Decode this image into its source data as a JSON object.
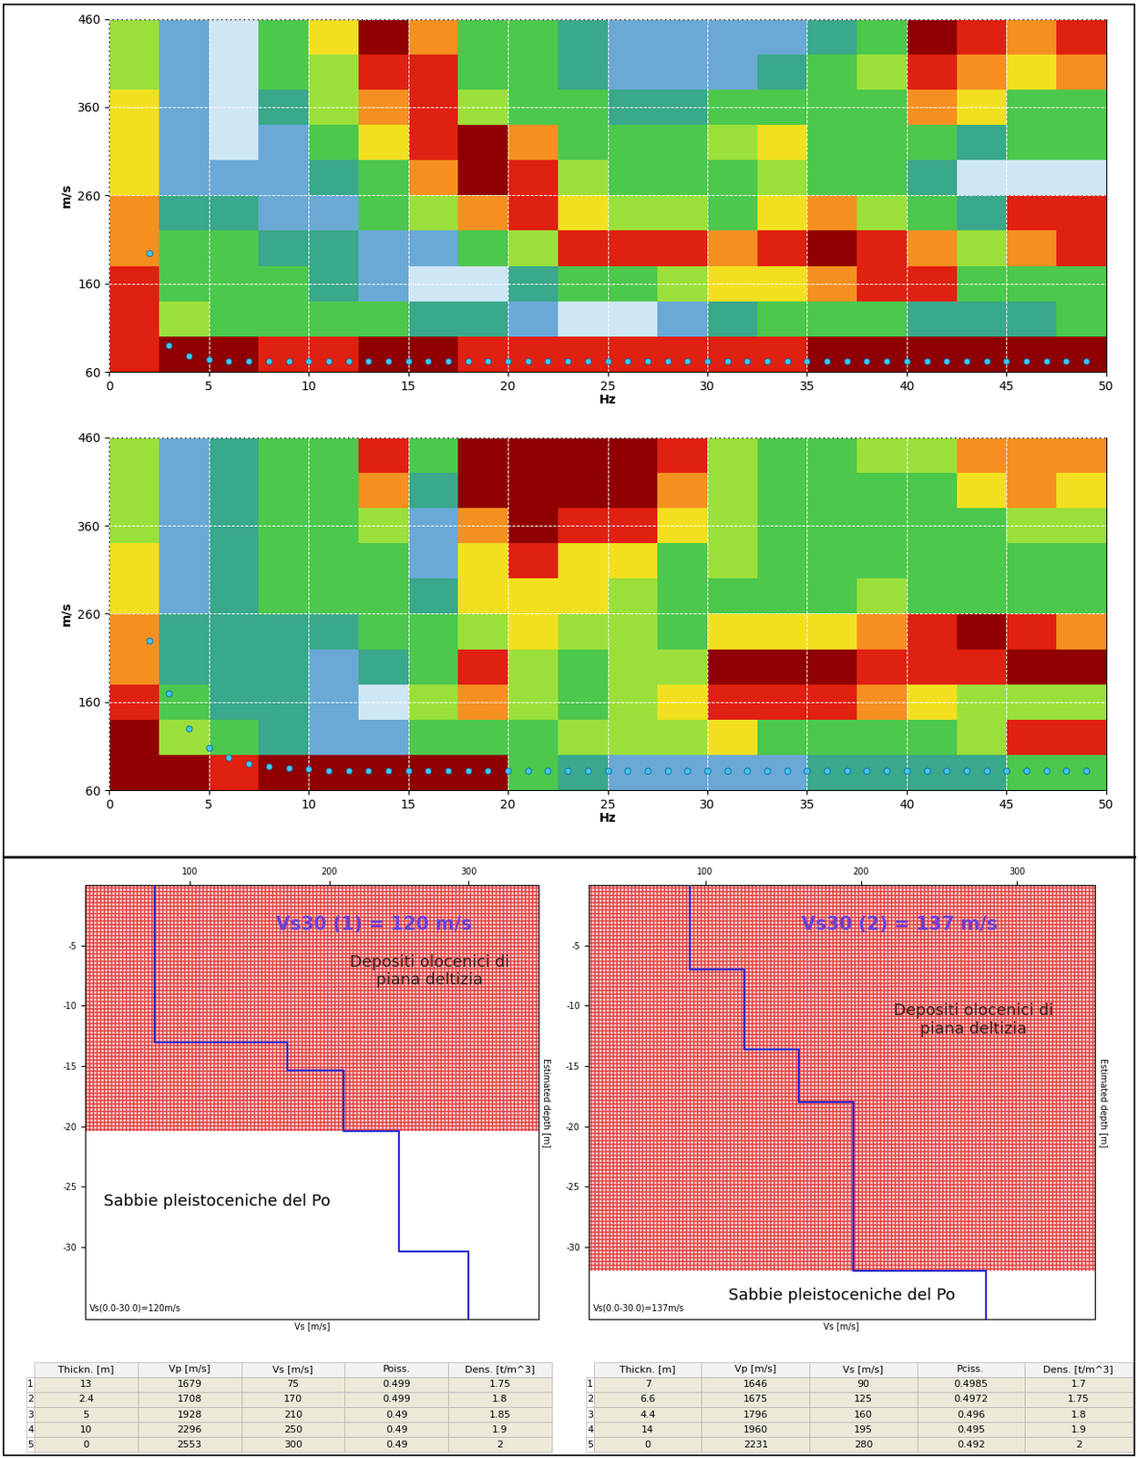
{
  "chart_data": [
    {
      "type": "heatmap",
      "x_label": "Hz",
      "y_label": "m/s",
      "xlim": [
        0,
        50
      ],
      "xticks": [
        0,
        5,
        10,
        15,
        20,
        25,
        30,
        35,
        40,
        45,
        50
      ],
      "ylim": [
        60,
        460
      ],
      "yticks": [
        60,
        160,
        260,
        360,
        460
      ],
      "grid": true,
      "x_edges": [
        0,
        2.5,
        5,
        7.5,
        10,
        12.5,
        15,
        17.5,
        20,
        22.5,
        25,
        27.5,
        30,
        32.5,
        35,
        37.5,
        40,
        42.5,
        45,
        47.5,
        50
      ],
      "y_edges": [
        60,
        100,
        140,
        180,
        220,
        260,
        300,
        340,
        380,
        420,
        460
      ],
      "color_range": [
        0,
        9
      ],
      "cells": [
        [
          8,
          9,
          9,
          8,
          8,
          9,
          9,
          8,
          8,
          8,
          8,
          8,
          8,
          8,
          9,
          9,
          9,
          9,
          9,
          9
        ],
        [
          8,
          5,
          4,
          4,
          4,
          4,
          3,
          3,
          2,
          1,
          1,
          2,
          3,
          4,
          4,
          4,
          3,
          3,
          3,
          4
        ],
        [
          8,
          4,
          4,
          4,
          3,
          2,
          1,
          1,
          3,
          4,
          4,
          5,
          6,
          6,
          7,
          8,
          8,
          4,
          4,
          4
        ],
        [
          7,
          4,
          4,
          3,
          3,
          2,
          2,
          4,
          5,
          8,
          8,
          8,
          7,
          8,
          9,
          8,
          7,
          5,
          7,
          8
        ],
        [
          7,
          3,
          3,
          2,
          2,
          4,
          5,
          7,
          8,
          6,
          5,
          5,
          4,
          6,
          7,
          5,
          4,
          3,
          8,
          8
        ],
        [
          6,
          2,
          2,
          2,
          3,
          4,
          7,
          9,
          8,
          5,
          4,
          4,
          4,
          5,
          4,
          4,
          3,
          1,
          1,
          1
        ],
        [
          6,
          2,
          1,
          2,
          4,
          6,
          8,
          9,
          7,
          4,
          4,
          4,
          5,
          6,
          4,
          4,
          4,
          3,
          4,
          4
        ],
        [
          6,
          2,
          1,
          3,
          5,
          7,
          8,
          5,
          4,
          4,
          3,
          3,
          4,
          4,
          4,
          4,
          7,
          6,
          4,
          4
        ],
        [
          5,
          2,
          1,
          4,
          5,
          8,
          8,
          4,
          4,
          3,
          2,
          2,
          2,
          3,
          4,
          5,
          8,
          7,
          6,
          7
        ],
        [
          5,
          2,
          1,
          4,
          6,
          9,
          7,
          4,
          4,
          3,
          2,
          2,
          2,
          2,
          3,
          4,
          9,
          8,
          7,
          8
        ]
      ],
      "marker": "o",
      "color": "#40c8f0",
      "picks": {
        "x": [
          2,
          3,
          4,
          5,
          6,
          7,
          8,
          9,
          10,
          11,
          12,
          13,
          14,
          15,
          16,
          17,
          18,
          19,
          20,
          21,
          22,
          23,
          24,
          25,
          26,
          27,
          28,
          29,
          30,
          31,
          32,
          33,
          34,
          35,
          36,
          37,
          38,
          39,
          40,
          41,
          42,
          43,
          44,
          45,
          46,
          47,
          48,
          49
        ],
        "y": [
          195,
          90,
          78,
          74,
          72,
          72,
          72,
          72,
          72,
          72,
          72,
          72,
          72,
          72,
          72,
          72,
          72,
          72,
          72,
          72,
          72,
          72,
          72,
          72,
          72,
          72,
          72,
          72,
          72,
          72,
          72,
          72,
          72,
          72,
          72,
          72,
          72,
          72,
          72,
          72,
          72,
          72,
          72,
          72,
          72,
          72,
          72,
          72
        ]
      }
    },
    {
      "type": "heatmap",
      "x_label": "Hz",
      "y_label": "m/s",
      "xlim": [
        0,
        50
      ],
      "xticks": [
        0,
        5,
        10,
        15,
        20,
        25,
        30,
        35,
        40,
        45,
        50
      ],
      "ylim": [
        60,
        460
      ],
      "yticks": [
        60,
        160,
        260,
        360,
        460
      ],
      "grid": true,
      "x_edges": [
        0,
        2.5,
        5,
        7.5,
        10,
        12.5,
        15,
        17.5,
        20,
        22.5,
        25,
        27.5,
        30,
        32.5,
        35,
        37.5,
        40,
        42.5,
        45,
        47.5,
        50
      ],
      "y_edges": [
        60,
        100,
        140,
        180,
        220,
        260,
        300,
        340,
        380,
        420,
        460
      ],
      "color_range": [
        0,
        9
      ],
      "cells": [
        [
          9,
          9,
          8,
          9,
          9,
          9,
          9,
          9,
          4,
          3,
          2,
          2,
          2,
          2,
          3,
          3,
          3,
          3,
          4,
          4
        ],
        [
          9,
          5,
          4,
          3,
          2,
          2,
          4,
          4,
          4,
          5,
          5,
          5,
          6,
          4,
          4,
          4,
          4,
          5,
          8,
          8
        ],
        [
          8,
          4,
          3,
          3,
          2,
          1,
          5,
          7,
          5,
          4,
          5,
          6,
          8,
          8,
          8,
          7,
          6,
          5,
          5,
          5
        ],
        [
          7,
          3,
          3,
          3,
          2,
          3,
          4,
          8,
          5,
          4,
          5,
          5,
          9,
          9,
          9,
          8,
          8,
          8,
          9,
          9
        ],
        [
          7,
          3,
          3,
          3,
          3,
          4,
          4,
          5,
          6,
          5,
          5,
          4,
          6,
          6,
          6,
          7,
          8,
          9,
          8,
          7
        ],
        [
          6,
          2,
          3,
          4,
          4,
          4,
          3,
          6,
          6,
          6,
          5,
          4,
          4,
          4,
          4,
          5,
          4,
          4,
          4,
          4
        ],
        [
          6,
          2,
          3,
          4,
          4,
          4,
          2,
          6,
          8,
          6,
          6,
          4,
          5,
          4,
          4,
          4,
          4,
          4,
          4,
          4
        ],
        [
          5,
          2,
          3,
          4,
          4,
          5,
          2,
          7,
          9,
          8,
          8,
          6,
          5,
          4,
          4,
          4,
          4,
          4,
          5,
          5
        ],
        [
          5,
          2,
          3,
          4,
          4,
          7,
          3,
          9,
          9,
          9,
          9,
          7,
          5,
          4,
          4,
          4,
          4,
          6,
          7,
          6
        ],
        [
          5,
          2,
          3,
          4,
          4,
          8,
          4,
          9,
          9,
          9,
          9,
          8,
          5,
          4,
          4,
          5,
          5,
          7,
          7,
          7
        ]
      ],
      "marker": "o",
      "color": "#40c8f0",
      "picks": {
        "x": [
          2,
          3,
          4,
          5,
          6,
          7,
          8,
          9,
          10,
          11,
          12,
          13,
          14,
          15,
          16,
          17,
          18,
          19,
          20,
          21,
          22,
          23,
          24,
          25,
          26,
          27,
          28,
          29,
          30,
          31,
          32,
          33,
          34,
          35,
          36,
          37,
          38,
          39,
          40,
          41,
          42,
          43,
          44,
          45,
          46,
          47,
          48,
          49
        ],
        "y": [
          230,
          170,
          130,
          108,
          97,
          90,
          87,
          85,
          84,
          82,
          82,
          82,
          82,
          82,
          82,
          82,
          82,
          82,
          82,
          82,
          82,
          82,
          82,
          82,
          82,
          82,
          82,
          82,
          82,
          82,
          82,
          82,
          82,
          82,
          82,
          82,
          82,
          82,
          82,
          82,
          82,
          82,
          82,
          82,
          82,
          82,
          82,
          82
        ]
      }
    },
    {
      "type": "step",
      "title": "Vs30 (1) = 120 m/s",
      "x_label": "Vs [m/s]",
      "y_label": "Estimated depth [m]",
      "xlim": [
        25,
        350
      ],
      "xticks": [
        100,
        200,
        300
      ],
      "ylim": [
        -36,
        0
      ],
      "yticks": [
        -5,
        -10,
        -15,
        -20,
        -25,
        -30
      ],
      "color": "#2828d0",
      "annotations": {
        "vs30_note": "Vs(0.0-30.0)=120m/s",
        "upper_unit": "Depositi olocenici di\npiana deltizia",
        "lower_unit": "Sabbie pleistoceniche del Po"
      },
      "deposit_base_depth": 20.4,
      "table": {
        "columns": [
          "Thickn. [m]",
          "Vp [m/s]",
          "Vs [m/s]",
          "Poiss.",
          "Dens. [t/m^3]"
        ],
        "row_labels": [
          "1",
          "2",
          "3",
          "4",
          "5"
        ],
        "rows": [
          [
            "13",
            "1679",
            "75",
            "0.499",
            "1.75"
          ],
          [
            "2.4",
            "1708",
            "170",
            "0.499",
            "1.8"
          ],
          [
            "5",
            "1928",
            "210",
            "0.49",
            "1.85"
          ],
          [
            "10",
            "2296",
            "250",
            "0.49",
            "1.9"
          ],
          [
            "0",
            "2553",
            "300",
            "0.49",
            "2"
          ]
        ]
      }
    },
    {
      "type": "step",
      "title": "Vs30 (2) = 137 m/s",
      "x_label": "Vs [m/s]",
      "y_label": "Estimated depth [m]",
      "xlim": [
        25,
        350
      ],
      "xticks": [
        100,
        200,
        300
      ],
      "ylim": [
        -36,
        0
      ],
      "yticks": [
        -5,
        -10,
        -15,
        -20,
        -25,
        -30
      ],
      "color": "#2828d0",
      "annotations": {
        "vs30_note": "Vs(0.0-30.0)=137m/s",
        "upper_unit": "Depositi olocenici di\npiana deltizia",
        "lower_unit": "Sabbie pleistoceniche del Po"
      },
      "deposit_base_depth": 32,
      "table": {
        "columns": [
          "Thickn. [m]",
          "Vp [m/s]",
          "Vs [m/s]",
          "Pciss.",
          "Dens. [t/m^3]"
        ],
        "row_labels": [
          "1",
          "2",
          "3",
          "4",
          "5"
        ],
        "rows": [
          [
            "7",
            "1646",
            "90",
            "0.4985",
            "1.7"
          ],
          [
            "6.6",
            "1675",
            "125",
            "0.4972",
            "1.75"
          ],
          [
            "4.4",
            "1796",
            "160",
            "0.496",
            "1.8"
          ],
          [
            "14",
            "1960",
            "195",
            "0.495",
            "1.9"
          ],
          [
            "0",
            "2231",
            "280",
            "0.492",
            "2"
          ]
        ]
      }
    }
  ]
}
